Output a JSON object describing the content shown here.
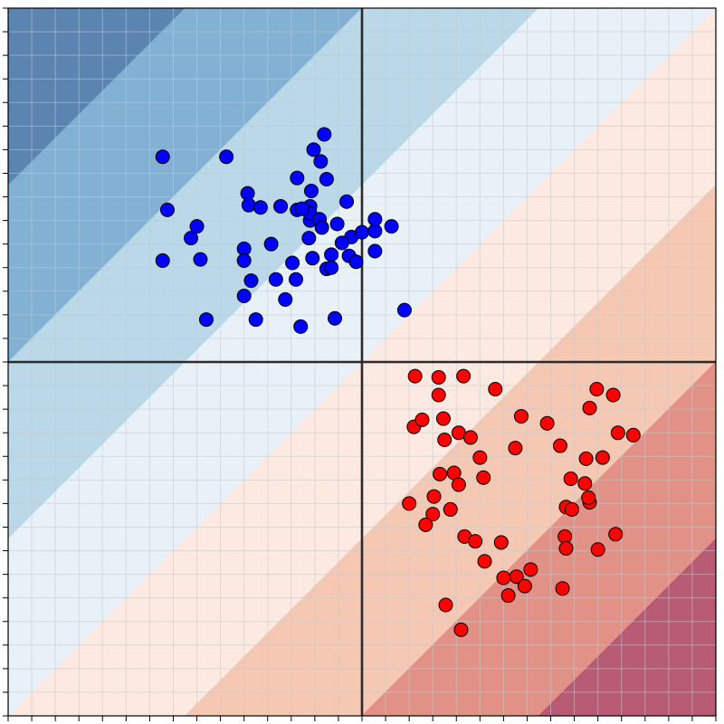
{
  "chart_data": {
    "type": "scatter",
    "title": "",
    "xlabel": "",
    "ylabel": "",
    "xlim": [
      -3,
      3
    ],
    "ylim": [
      -3,
      3
    ],
    "grid": true,
    "axis_lines": {
      "x": 0,
      "y": 0
    },
    "decision_surface": {
      "type": "filled-contour",
      "function": "x - y",
      "levels": [
        -6,
        -4.5,
        -3,
        -1.5,
        0,
        1.5,
        3,
        4.5,
        6
      ],
      "colors": [
        "#4a77a8",
        "#74a9cf",
        "#b2d4e6",
        "#e6eff6",
        "#fbe7df",
        "#f4c2ab",
        "#df857a",
        "#b04a66"
      ],
      "opacity": 0.9
    },
    "series": [
      {
        "color": "#0000ff",
        "points": [
          [
            -1.65,
            1.29
          ],
          [
            -1.69,
            1.74
          ],
          [
            -1.15,
            1.74
          ],
          [
            -0.55,
            1.56
          ],
          [
            -0.41,
            1.8
          ],
          [
            -0.32,
            1.93
          ],
          [
            -0.35,
            1.7
          ],
          [
            -0.97,
            1.43
          ],
          [
            -1.45,
            1.05
          ],
          [
            -1.4,
            1.15
          ],
          [
            -0.96,
            1.33
          ],
          [
            -0.86,
            1.31
          ],
          [
            -0.43,
            1.45
          ],
          [
            -0.3,
            1.55
          ],
          [
            -0.44,
            1.32
          ],
          [
            -1.37,
            0.87
          ],
          [
            -1.0,
            0.96
          ],
          [
            -1.69,
            0.86
          ],
          [
            -1.0,
            0.86
          ],
          [
            -0.94,
            0.69
          ],
          [
            -0.9,
            0.36
          ],
          [
            -1.0,
            0.56
          ],
          [
            -0.77,
            1.0
          ],
          [
            -0.65,
            0.53
          ],
          [
            -0.69,
            1.32
          ],
          [
            -0.55,
            1.29
          ],
          [
            -0.73,
            0.7
          ],
          [
            -0.45,
            1.05
          ],
          [
            -0.44,
            1.2
          ],
          [
            -0.13,
            1.36
          ],
          [
            -0.44,
            1.26
          ],
          [
            -0.51,
            1.3
          ],
          [
            -0.36,
            1.21
          ],
          [
            -0.21,
            1.17
          ],
          [
            -0.42,
            0.88
          ],
          [
            -0.34,
            1.14
          ],
          [
            -0.3,
            0.79
          ],
          [
            -0.26,
            0.91
          ],
          [
            -0.09,
            1.06
          ],
          [
            0.0,
            1.1
          ],
          [
            0.11,
            0.94
          ],
          [
            0.11,
            1.11
          ],
          [
            0.11,
            1.21
          ],
          [
            0.25,
            1.15
          ],
          [
            0.36,
            0.44
          ],
          [
            -0.23,
            0.37
          ],
          [
            -0.52,
            0.3
          ],
          [
            -0.26,
            0.8
          ],
          [
            -0.11,
            0.9
          ],
          [
            -0.59,
            0.84
          ],
          [
            -0.56,
            0.7
          ],
          [
            -1.32,
            0.36
          ],
          [
            -0.17,
            1.01
          ],
          [
            -0.05,
            0.85
          ]
        ]
      },
      {
        "color": "#ff0000",
        "points": [
          [
            0.45,
            -0.12
          ],
          [
            0.65,
            -0.13
          ],
          [
            0.86,
            -0.12
          ],
          [
            1.13,
            -0.23
          ],
          [
            0.65,
            -0.28
          ],
          [
            0.44,
            -0.55
          ],
          [
            0.51,
            -0.49
          ],
          [
            0.69,
            -0.48
          ],
          [
            0.7,
            -0.66
          ],
          [
            0.82,
            -0.6
          ],
          [
            0.92,
            -0.64
          ],
          [
            1.35,
            -0.46
          ],
          [
            1.3,
            -0.73
          ],
          [
            1.57,
            -0.52
          ],
          [
            1.93,
            -0.39
          ],
          [
            1.99,
            -0.23
          ],
          [
            2.13,
            -0.28
          ],
          [
            2.17,
            -0.6
          ],
          [
            2.3,
            -0.62
          ],
          [
            1.68,
            -0.71
          ],
          [
            1.77,
            -0.99
          ],
          [
            1.9,
            -0.82
          ],
          [
            1.89,
            -1.03
          ],
          [
            2.04,
            -0.81
          ],
          [
            0.78,
            -0.94
          ],
          [
            0.66,
            -0.95
          ],
          [
            1.03,
            -0.98
          ],
          [
            1.0,
            -0.81
          ],
          [
            0.61,
            -1.14
          ],
          [
            0.82,
            -1.04
          ],
          [
            0.75,
            -1.25
          ],
          [
            0.87,
            -1.48
          ],
          [
            1.18,
            -1.53
          ],
          [
            1.43,
            -1.76
          ],
          [
            1.31,
            -1.82
          ],
          [
            1.73,
            -1.23
          ],
          [
            1.93,
            -1.19
          ],
          [
            2.0,
            -1.59
          ],
          [
            1.72,
            -1.48
          ],
          [
            0.6,
            -1.29
          ],
          [
            0.96,
            -1.52
          ],
          [
            1.2,
            -1.83
          ],
          [
            1.73,
            -1.58
          ],
          [
            1.92,
            -1.15
          ],
          [
            1.04,
            -1.69
          ],
          [
            0.54,
            -1.38
          ],
          [
            1.78,
            -1.25
          ],
          [
            0.4,
            -1.2
          ],
          [
            2.15,
            -1.46
          ],
          [
            1.7,
            -1.92
          ],
          [
            1.24,
            -1.98
          ],
          [
            0.84,
            -2.27
          ],
          [
            1.38,
            -1.9
          ],
          [
            0.71,
            -2.06
          ]
        ]
      }
    ]
  }
}
